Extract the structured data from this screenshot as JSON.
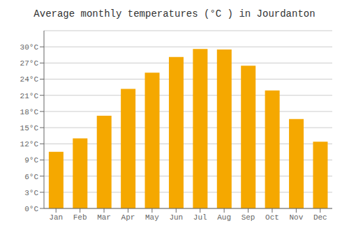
{
  "chart_data": {
    "type": "bar",
    "title": "Average monthly temperatures (°C ) in Jourdanton",
    "categories": [
      "Jan",
      "Feb",
      "Mar",
      "Apr",
      "May",
      "Jun",
      "Jul",
      "Aug",
      "Sep",
      "Oct",
      "Nov",
      "Dec"
    ],
    "values": [
      10.5,
      13.0,
      17.2,
      22.2,
      25.2,
      28.1,
      29.6,
      29.5,
      26.5,
      21.9,
      16.6,
      12.4
    ],
    "color": "#F5A800",
    "ylim": [
      0,
      33
    ],
    "yticks": [
      {
        "value": 0,
        "label": "0°C"
      },
      {
        "value": 3,
        "label": "3°C"
      },
      {
        "value": 6,
        "label": "6°C"
      },
      {
        "value": 9,
        "label": "9°C"
      },
      {
        "value": 12,
        "label": "12°C"
      },
      {
        "value": 15,
        "label": "15°C"
      },
      {
        "value": 18,
        "label": "18°C"
      },
      {
        "value": 21,
        "label": "21°C"
      },
      {
        "value": 24,
        "label": "24°C"
      },
      {
        "value": 27,
        "label": "27°C"
      },
      {
        "value": 30,
        "label": "30°C"
      }
    ],
    "grid": true
  }
}
